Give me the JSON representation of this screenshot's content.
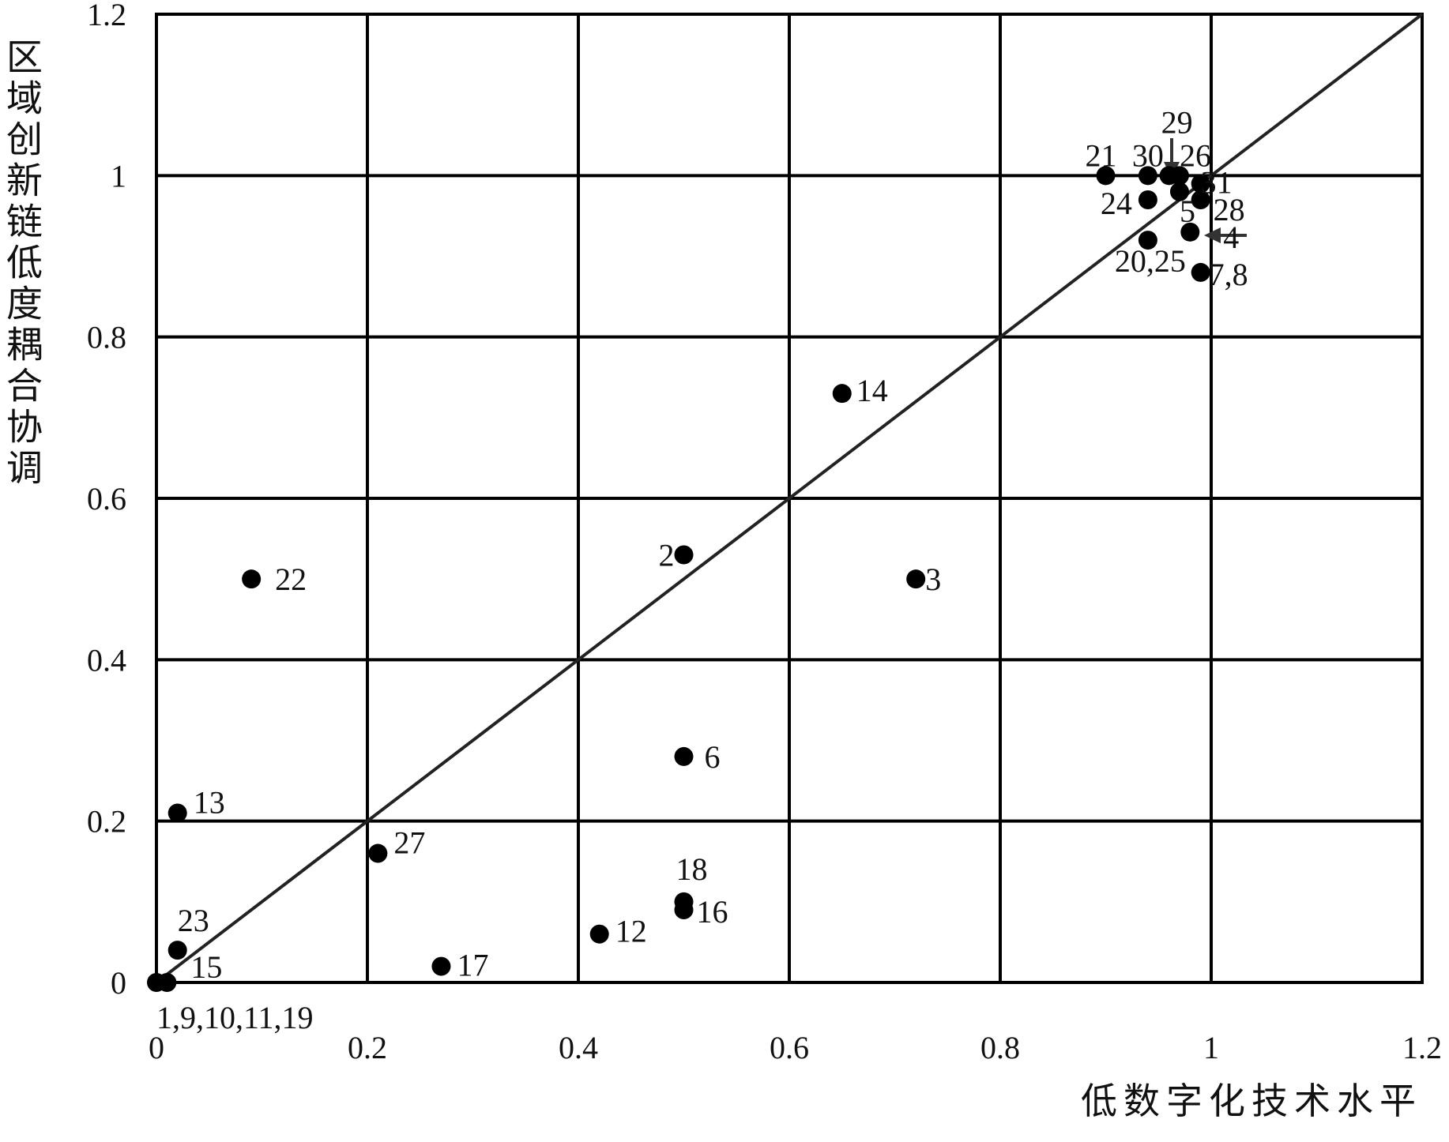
{
  "chart_data": {
    "type": "scatter",
    "title": "",
    "xlabel": "低数字化技术水平",
    "ylabel": "区域创新链低度耦合协调",
    "xlim": [
      0,
      1.2
    ],
    "ylim": [
      0,
      1.2
    ],
    "xticks": [
      "0",
      "0.2",
      "0.4",
      "0.6",
      "0.8",
      "1",
      "1.2"
    ],
    "yticks": [
      "0",
      "0.2",
      "0.4",
      "0.6",
      "0.8",
      "1",
      "1.2"
    ],
    "grid": true,
    "legend": "none",
    "reference_line": {
      "from": [
        0,
        0
      ],
      "to": [
        1.2,
        1.2
      ]
    },
    "points": [
      {
        "x": 0.0,
        "y": 0.0
      },
      {
        "x": 0.01,
        "y": 0.0
      },
      {
        "x": 0.02,
        "y": 0.04
      },
      {
        "x": 0.02,
        "y": 0.21
      },
      {
        "x": 0.09,
        "y": 0.5
      },
      {
        "x": 0.21,
        "y": 0.16
      },
      {
        "x": 0.27,
        "y": 0.02
      },
      {
        "x": 0.42,
        "y": 0.06
      },
      {
        "x": 0.5,
        "y": 0.1
      },
      {
        "x": 0.5,
        "y": 0.09
      },
      {
        "x": 0.5,
        "y": 0.28
      },
      {
        "x": 0.5,
        "y": 0.53
      },
      {
        "x": 0.65,
        "y": 0.73
      },
      {
        "x": 0.72,
        "y": 0.5
      },
      {
        "x": 0.9,
        "y": 1.0
      },
      {
        "x": 0.94,
        "y": 1.0
      },
      {
        "x": 0.94,
        "y": 0.97
      },
      {
        "x": 0.94,
        "y": 0.92
      },
      {
        "x": 0.96,
        "y": 1.0
      },
      {
        "x": 0.97,
        "y": 1.0
      },
      {
        "x": 0.97,
        "y": 0.98
      },
      {
        "x": 0.98,
        "y": 0.93
      },
      {
        "x": 0.99,
        "y": 0.99
      },
      {
        "x": 0.99,
        "y": 0.97
      },
      {
        "x": 0.99,
        "y": 0.88
      }
    ],
    "point_labels": [
      {
        "text": "1,9,10,11,19",
        "x": 0.0,
        "y": 0.0
      },
      {
        "text": "15",
        "x": 0.01,
        "y": 0.0
      },
      {
        "text": "23",
        "x": 0.02,
        "y": 0.04
      },
      {
        "text": "13",
        "x": 0.02,
        "y": 0.21
      },
      {
        "text": "22",
        "x": 0.09,
        "y": 0.5
      },
      {
        "text": "27",
        "x": 0.21,
        "y": 0.16
      },
      {
        "text": "17",
        "x": 0.27,
        "y": 0.02
      },
      {
        "text": "12",
        "x": 0.42,
        "y": 0.06
      },
      {
        "text": "18",
        "x": 0.5,
        "y": 0.1
      },
      {
        "text": "16",
        "x": 0.5,
        "y": 0.09
      },
      {
        "text": "6",
        "x": 0.5,
        "y": 0.28
      },
      {
        "text": "2",
        "x": 0.5,
        "y": 0.53
      },
      {
        "text": "14",
        "x": 0.65,
        "y": 0.73
      },
      {
        "text": "3",
        "x": 0.72,
        "y": 0.5
      },
      {
        "text": "21",
        "x": 0.9,
        "y": 1.0
      },
      {
        "text": "30",
        "x": 0.94,
        "y": 1.0
      },
      {
        "text": "24",
        "x": 0.94,
        "y": 0.97
      },
      {
        "text": "20,25",
        "x": 0.94,
        "y": 0.92
      },
      {
        "text": "29",
        "x": 0.96,
        "y": 1.0
      },
      {
        "text": "26",
        "x": 0.97,
        "y": 1.0
      },
      {
        "text": "5",
        "x": 0.97,
        "y": 0.98
      },
      {
        "text": "4",
        "x": 0.98,
        "y": 0.93
      },
      {
        "text": "31",
        "x": 0.99,
        "y": 0.99
      },
      {
        "text": "28",
        "x": 0.99,
        "y": 0.97
      },
      {
        "text": "7,8",
        "x": 0.99,
        "y": 0.88
      }
    ]
  }
}
